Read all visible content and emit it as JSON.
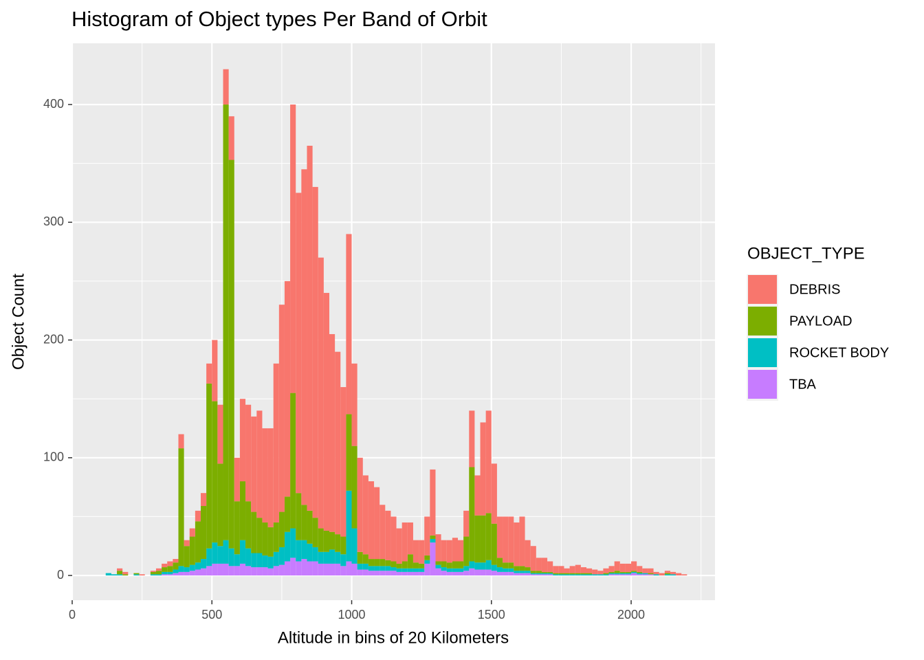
{
  "chart_data": {
    "type": "histogram",
    "stacked": true,
    "title": "Histogram of Object types Per Band of Orbit",
    "xlabel": "Altitude in bins of 20 Kilometers",
    "ylabel": "Object Count",
    "legend_title": "OBJECT_TYPE",
    "legend": "right",
    "grid": true,
    "xlim": [
      0,
      2300
    ],
    "ylim": [
      -21,
      452
    ],
    "xticks": [
      0,
      500,
      1000,
      1500,
      2000
    ],
    "yticks": [
      0,
      100,
      200,
      300,
      400
    ],
    "xminor": [
      250,
      750,
      1250,
      1750,
      2250
    ],
    "yminor": [
      50,
      150,
      250,
      350
    ],
    "bins": [
      100,
      120,
      140,
      160,
      180,
      200,
      220,
      240,
      260,
      280,
      300,
      320,
      340,
      360,
      380,
      400,
      420,
      440,
      460,
      480,
      500,
      520,
      540,
      560,
      580,
      600,
      620,
      640,
      660,
      680,
      700,
      720,
      740,
      760,
      780,
      800,
      820,
      840,
      860,
      880,
      900,
      920,
      940,
      960,
      980,
      1000,
      1020,
      1040,
      1060,
      1080,
      1100,
      1120,
      1140,
      1160,
      1180,
      1200,
      1220,
      1240,
      1260,
      1280,
      1300,
      1320,
      1340,
      1360,
      1380,
      1400,
      1420,
      1440,
      1460,
      1480,
      1500,
      1520,
      1540,
      1560,
      1580,
      1600,
      1620,
      1640,
      1660,
      1680,
      1700,
      1720,
      1740,
      1760,
      1780,
      1800,
      1820,
      1840,
      1860,
      1880,
      1900,
      1920,
      1940,
      1960,
      1980,
      2000,
      2020,
      2040,
      2060,
      2080,
      2100,
      2120,
      2140,
      2160,
      2180,
      2200
    ],
    "series": [
      {
        "name": "DEBRIS",
        "color": "#F8766D",
        "values": [
          0,
          0,
          0,
          2,
          2,
          0,
          0,
          1,
          0,
          1,
          2,
          3,
          4,
          3,
          12,
          5,
          7,
          9,
          11,
          17,
          52,
          50,
          30,
          37,
          37,
          70,
          82,
          81,
          91,
          80,
          84,
          135,
          176,
          183,
          245,
          255,
          285,
          310,
          281,
          230,
          202,
          168,
          155,
          127,
          153,
          70,
          80,
          67,
          66,
          61,
          46,
          42,
          38,
          30,
          33,
          27,
          19,
          20,
          33,
          56,
          23,
          18,
          19,
          20,
          18,
          22,
          48,
          34,
          79,
          87,
          51,
          35,
          39,
          39,
          37,
          42,
          23,
          21,
          11,
          12,
          9,
          6,
          6,
          4,
          6,
          7,
          5,
          4,
          4,
          3,
          4,
          5,
          8,
          7,
          7,
          8,
          5,
          4,
          4,
          2,
          2,
          2,
          2,
          2,
          1
        ]
      },
      {
        "name": "PAYLOAD",
        "color": "#7CAE00",
        "values": [
          0,
          0,
          0,
          3,
          1,
          0,
          1,
          0,
          0,
          2,
          3,
          4,
          5,
          6,
          100,
          18,
          24,
          35,
          45,
          140,
          120,
          70,
          370,
          330,
          45,
          50,
          40,
          35,
          30,
          28,
          25,
          25,
          30,
          30,
          115,
          40,
          30,
          28,
          25,
          20,
          18,
          15,
          15,
          15,
          65,
          70,
          10,
          8,
          6,
          6,
          6,
          5,
          5,
          4,
          6,
          12,
          5,
          4,
          4,
          3,
          3,
          5,
          5,
          6,
          6,
          25,
          80,
          40,
          40,
          40,
          35,
          8,
          5,
          5,
          4,
          4,
          3,
          2,
          2,
          1,
          1,
          1,
          1,
          1,
          1,
          1,
          1,
          1,
          0,
          0,
          1,
          1,
          2,
          1,
          1,
          1,
          1,
          0,
          1,
          0,
          0,
          1,
          0,
          0,
          0
        ]
      },
      {
        "name": "ROCKET BODY",
        "color": "#00BFC4",
        "values": [
          0,
          2,
          1,
          1,
          0,
          0,
          1,
          0,
          0,
          1,
          1,
          2,
          2,
          3,
          5,
          4,
          5,
          6,
          8,
          15,
          18,
          15,
          20,
          15,
          10,
          20,
          15,
          12,
          12,
          10,
          10,
          12,
          15,
          25,
          25,
          18,
          16,
          15,
          12,
          10,
          10,
          12,
          10,
          10,
          60,
          30,
          5,
          5,
          4,
          4,
          4,
          4,
          3,
          3,
          3,
          3,
          3,
          3,
          3,
          3,
          3,
          3,
          3,
          3,
          3,
          4,
          6,
          6,
          6,
          8,
          5,
          4,
          3,
          3,
          2,
          2,
          2,
          1,
          1,
          1,
          1,
          1,
          1,
          1,
          1,
          1,
          1,
          1,
          1,
          1,
          1,
          1,
          1,
          1,
          1,
          1,
          1,
          1,
          0,
          1,
          0,
          1,
          1,
          0,
          0
        ]
      },
      {
        "name": "TBA",
        "color": "#C77CFF",
        "values": [
          0,
          0,
          0,
          0,
          0,
          0,
          0,
          0,
          0,
          0,
          0,
          1,
          1,
          2,
          3,
          3,
          4,
          5,
          6,
          8,
          10,
          10,
          10,
          8,
          8,
          10,
          8,
          7,
          7,
          7,
          6,
          8,
          9,
          12,
          15,
          12,
          14,
          12,
          12,
          10,
          10,
          10,
          10,
          8,
          12,
          10,
          5,
          5,
          4,
          4,
          4,
          4,
          4,
          3,
          3,
          3,
          3,
          3,
          10,
          28,
          6,
          4,
          3,
          3,
          3,
          4,
          6,
          5,
          5,
          5,
          4,
          3,
          3,
          3,
          2,
          2,
          2,
          1,
          1,
          1,
          1,
          0,
          0,
          0,
          0,
          0,
          0,
          0,
          0,
          0,
          0,
          1,
          1,
          1,
          1,
          2,
          1,
          1,
          1,
          0,
          0,
          0,
          0,
          0,
          0
        ]
      }
    ]
  }
}
